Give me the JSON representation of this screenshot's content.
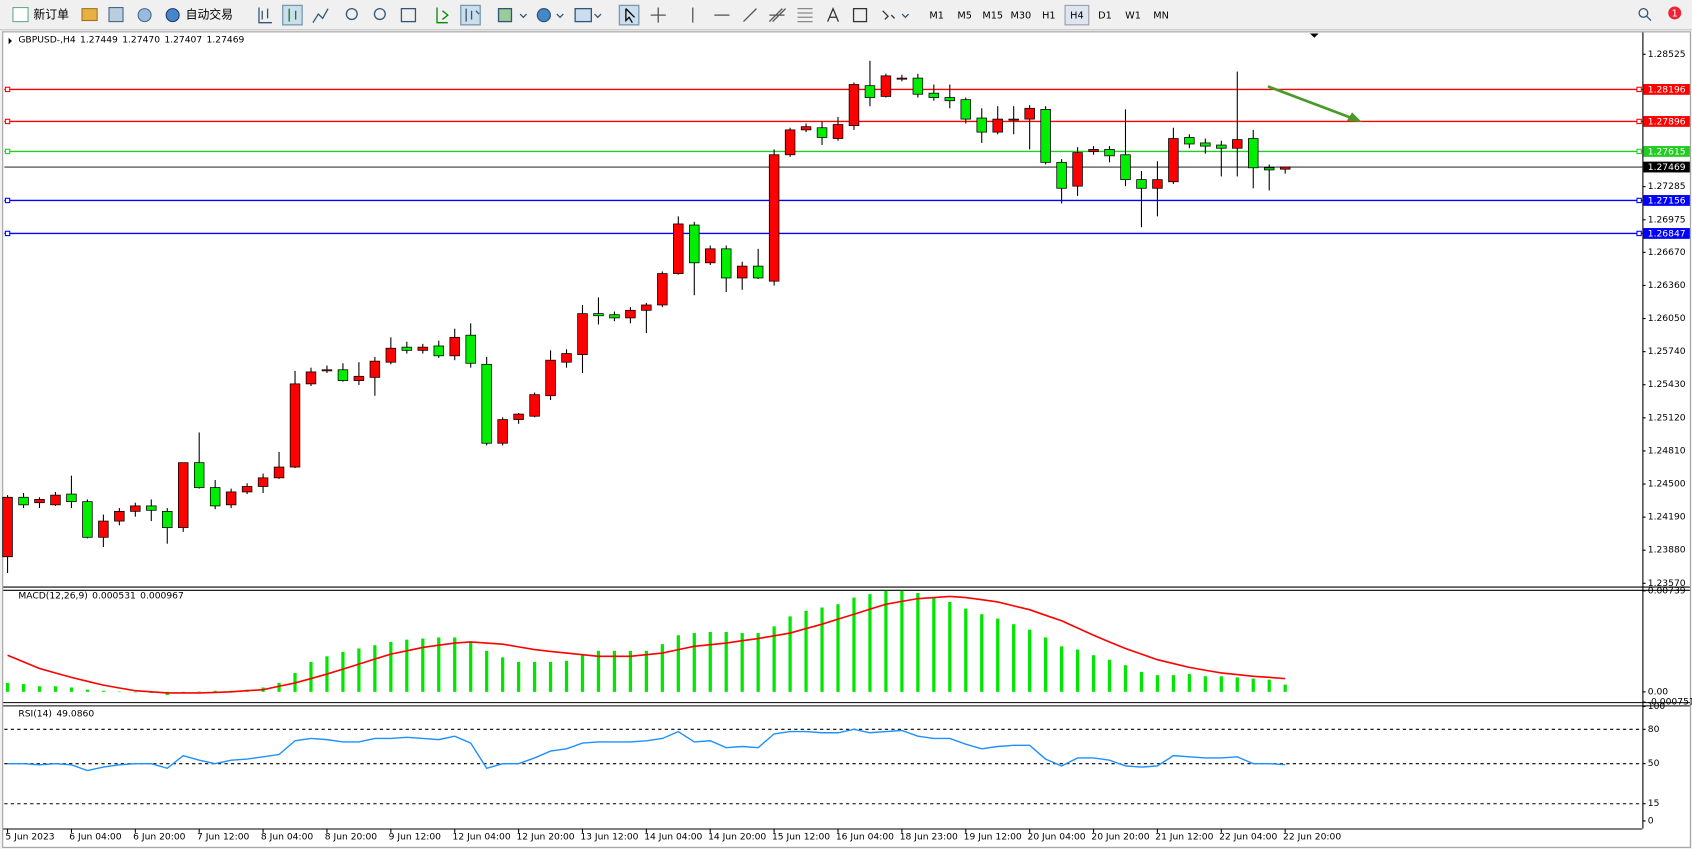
{
  "toolbar": {
    "new_order": "新订单",
    "auto_trading": "自动交易",
    "timeframes": [
      "M1",
      "M5",
      "M15",
      "M30",
      "H1",
      "H4",
      "D1",
      "W1",
      "MN"
    ],
    "active_timeframe": "H4",
    "notifications": 1
  },
  "chart_data": [
    {
      "type": "candlestick",
      "title": "GBPUSD-,H4",
      "header_labels": [
        "1.27449",
        "1.27470",
        "1.27407",
        "1.27469"
      ],
      "up_color": "#ff0000",
      "down_color": "#00ee00",
      "bid_color": "#000000",
      "categories": [
        "5 Jun 2023",
        null,
        null,
        null,
        "6 Jun 04:00",
        null,
        null,
        null,
        "6 Jun 20:00",
        null,
        null,
        null,
        "7 Jun 12:00",
        null,
        null,
        null,
        "8 Jun 04:00",
        null,
        null,
        null,
        "8 Jun 20:00",
        null,
        null,
        null,
        "9 Jun 12:00",
        null,
        null,
        null,
        "12 Jun 04:00",
        null,
        null,
        null,
        "12 Jun 20:00",
        null,
        null,
        null,
        "13 Jun 12:00",
        null,
        null,
        null,
        "14 Jun 04:00",
        null,
        null,
        null,
        "14 Jun 20:00",
        null,
        null,
        null,
        "15 Jun 12:00",
        null,
        null,
        null,
        "16 Jun 04:00",
        null,
        null,
        null,
        "18 Jun 23:00",
        null,
        null,
        null,
        "19 Jun 12:00",
        null,
        null,
        null,
        "20 Jun 04:00",
        null,
        null,
        null,
        "20 Jun 20:00",
        null,
        null,
        null,
        "21 Jun 12:00",
        null,
        null,
        null,
        "22 Jun 04:00",
        null,
        null,
        null,
        "22 Jun 20:00"
      ],
      "open": [
        1.23819,
        1.24376,
        1.24325,
        1.24305,
        1.24406,
        1.24335,
        1.24001,
        1.24153,
        1.24244,
        1.24295,
        1.24244,
        1.24092,
        1.247,
        1.24467,
        1.24305,
        1.24426,
        1.24477,
        1.24558,
        1.24659,
        1.25438,
        1.2556,
        1.2557,
        1.25469,
        1.25499,
        1.25641,
        1.25782,
        1.25752,
        1.25793,
        1.25701,
        1.25894,
        1.25621,
        1.24882,
        1.25104,
        1.25135,
        1.25327,
        1.25641,
        1.25712,
        1.26096,
        1.26086,
        1.26056,
        1.26127,
        1.26177,
        1.26471,
        1.26926,
        1.26572,
        1.26703,
        1.2643,
        1.26541,
        1.264,
        1.27584,
        1.27817,
        1.27837,
        1.27736,
        1.27857,
        1.28231,
        1.2813,
        1.28292,
        1.28302,
        1.28161,
        1.2812,
        1.281,
        1.27928,
        1.27796,
        1.27908,
        1.27918,
        1.28009,
        1.27513,
        1.2729,
        1.27614,
        1.27634,
        1.27584,
        1.27351,
        1.2727,
        1.27331,
        1.27746,
        1.27695,
        1.27675,
        1.27645,
        1.27736,
        1.27462,
        1.27449
      ],
      "high": [
        1.24396,
        1.24416,
        1.24376,
        1.24426,
        1.24578,
        1.24356,
        1.24214,
        1.24275,
        1.24325,
        1.24356,
        1.24275,
        1.247,
        1.24983,
        1.24538,
        1.24457,
        1.24507,
        1.24598,
        1.24801,
        1.2556,
        1.2559,
        1.2561,
        1.25631,
        1.25641,
        1.25691,
        1.25874,
        1.25833,
        1.25813,
        1.25843,
        1.25955,
        1.26005,
        1.25691,
        1.25125,
        1.25165,
        1.25357,
        1.25752,
        1.25762,
        1.26177,
        1.26248,
        1.26116,
        1.26157,
        1.26197,
        1.26491,
        1.27007,
        1.26956,
        1.26734,
        1.26734,
        1.26582,
        1.26703,
        1.27634,
        1.27837,
        1.27877,
        1.27898,
        1.27938,
        1.28262,
        1.28464,
        1.28343,
        1.28333,
        1.28343,
        1.28242,
        1.28242,
        1.2812,
        1.28019,
        1.28039,
        1.28039,
        1.28049,
        1.28039,
        1.27543,
        1.27655,
        1.27665,
        1.27665,
        1.28009,
        1.27432,
        1.27523,
        1.27837,
        1.27776,
        1.27736,
        1.27715,
        1.28363,
        1.27817,
        1.27493,
        1.2747
      ],
      "low": [
        1.23667,
        1.24275,
        1.24275,
        1.24295,
        1.24275,
        1.23991,
        1.2391,
        1.24113,
        1.24194,
        1.24153,
        1.23941,
        1.24052,
        1.24457,
        1.24264,
        1.24275,
        1.24406,
        1.24416,
        1.24548,
        1.24649,
        1.25418,
        1.2554,
        1.25459,
        1.25428,
        1.25327,
        1.25621,
        1.25722,
        1.25722,
        1.25681,
        1.2566,
        1.2559,
        1.24862,
        1.24862,
        1.25064,
        1.25125,
        1.25287,
        1.2559,
        1.2554,
        1.25995,
        1.26025,
        1.26005,
        1.25914,
        1.26157,
        1.26461,
        1.26268,
        1.26552,
        1.26299,
        1.26319,
        1.2642,
        1.26359,
        1.27564,
        1.27796,
        1.27675,
        1.27715,
        1.27817,
        1.28039,
        1.2812,
        1.28272,
        1.2812,
        1.2809,
        1.28019,
        1.27877,
        1.27695,
        1.27776,
        1.27776,
        1.27634,
        1.27493,
        1.27128,
        1.27199,
        1.27584,
        1.27513,
        1.2729,
        1.26906,
        1.27007,
        1.27311,
        1.27645,
        1.27594,
        1.27381,
        1.27381,
        1.2727,
        1.2725,
        1.27407
      ],
      "close": [
        1.24376,
        1.24305,
        1.24356,
        1.24396,
        1.24335,
        1.24001,
        1.24153,
        1.24244,
        1.24295,
        1.24254,
        1.24092,
        1.247,
        1.24467,
        1.24295,
        1.24426,
        1.24477,
        1.24558,
        1.24659,
        1.25438,
        1.2555,
        1.2557,
        1.25469,
        1.25509,
        1.25651,
        1.25772,
        1.25752,
        1.25782,
        1.25701,
        1.25874,
        1.25631,
        1.24882,
        1.25104,
        1.25155,
        1.25337,
        1.2566,
        1.25722,
        1.26096,
        1.26076,
        1.26056,
        1.26127,
        1.26177,
        1.26471,
        1.26936,
        1.26572,
        1.26703,
        1.2643,
        1.26541,
        1.2643,
        1.27584,
        1.27817,
        1.27847,
        1.27746,
        1.27867,
        1.28242,
        1.2812,
        1.28323,
        1.28302,
        1.28151,
        1.2812,
        1.2809,
        1.27918,
        1.27796,
        1.27918,
        1.27918,
        1.28019,
        1.27513,
        1.2727,
        1.27604,
        1.27634,
        1.27574,
        1.27351,
        1.2727,
        1.27351,
        1.27736,
        1.27685,
        1.27665,
        1.27645,
        1.27726,
        1.27462,
        1.27442,
        1.27469
      ],
      "lines": [
        {
          "value": 1.28196,
          "color": "#ff0000"
        },
        {
          "value": 1.27896,
          "color": "#ff0000"
        },
        {
          "value": 1.27615,
          "color": "#22cc22"
        },
        {
          "value": 1.27156,
          "color": "#0000ff"
        },
        {
          "value": 1.26847,
          "color": "#0000ff"
        }
      ],
      "ylim": [
        1.2354,
        1.2873
      ],
      "yticks": [
        1.28525,
        1.27285,
        1.26975,
        {
          "value": 1.2667,
          "label": "1.26670"
        },
        {
          "value": 1.2636,
          "label": "1.26360"
        },
        {
          "value": 1.2605,
          "label": "1.26050"
        },
        {
          "value": 1.2574,
          "label": "1.25740"
        },
        {
          "value": 1.2543,
          "label": "1.25430"
        },
        {
          "value": 1.2512,
          "label": "1.25120"
        },
        {
          "value": 1.2481,
          "label": "1.24810"
        },
        {
          "value": 1.245,
          "label": "1.24500"
        },
        {
          "value": 1.2419,
          "label": "1.24190"
        },
        {
          "value": 1.2388,
          "label": "1.23880"
        },
        {
          "value": 1.2357,
          "label": "1.23570"
        }
      ]
    },
    {
      "type": "macd",
      "title": "MACD(12,26,9)",
      "histogram": {
        "color": "#00e600",
        "values": [
          0.00065,
          0.00057,
          0.00041,
          0.00041,
          0.00032,
          0.00016,
          8e-05,
          2e-05,
          -4e-05,
          -8e-05,
          -0.00024,
          -8e-05,
          2e-05,
          8e-05,
          8e-05,
          0.00016,
          0.00032,
          0.00065,
          0.00138,
          0.00219,
          0.0026,
          0.00292,
          0.00317,
          0.00341,
          0.00365,
          0.00382,
          0.0039,
          0.00398,
          0.00398,
          0.00365,
          0.003,
          0.00252,
          0.00219,
          0.00219,
          0.00219,
          0.00227,
          0.00276,
          0.003,
          0.003,
          0.003,
          0.003,
          0.00349,
          0.00414,
          0.0043,
          0.00438,
          0.00438,
          0.0043,
          0.0043,
          0.00479,
          0.00552,
          0.00593,
          0.00617,
          0.00641,
          0.0069,
          0.00715,
          0.00739,
          0.00739,
          0.00723,
          0.0069,
          0.00658,
          0.00609,
          0.00568,
          0.00536,
          0.00495,
          0.00455,
          0.00398,
          0.00333,
          0.00309,
          0.00268,
          0.00235,
          0.00195,
          0.00146,
          0.00122,
          0.00122,
          0.0013,
          0.00114,
          0.00114,
          0.00106,
          0.00097,
          0.00089,
          0.000531
        ]
      },
      "signal": {
        "color": "#ff0000",
        "values": [
          0.00268,
          0.00219,
          0.00171,
          0.00138,
          0.00106,
          0.00077,
          0.00049,
          0.00028,
          8e-05,
          0,
          -8e-05,
          -8e-05,
          -8e-05,
          -4e-05,
          0,
          8e-05,
          0.00016,
          0.00041,
          0.00065,
          0.00097,
          0.0013,
          0.00166,
          0.00203,
          0.0024,
          0.00276,
          0.003,
          0.00325,
          0.00341,
          0.00357,
          0.00365,
          0.00357,
          0.00349,
          0.00329,
          0.00309,
          0.00296,
          0.00284,
          0.00272,
          0.0026,
          0.0026,
          0.0026,
          0.00272,
          0.00284,
          0.00309,
          0.00333,
          0.00345,
          0.00357,
          0.00374,
          0.0039,
          0.0041,
          0.0043,
          0.00463,
          0.00495,
          0.00532,
          0.00568,
          0.00605,
          0.00641,
          0.00662,
          0.00682,
          0.0069,
          0.00698,
          0.0069,
          0.00674,
          0.00658,
          0.00629,
          0.00601,
          0.0056,
          0.0052,
          0.00467,
          0.00414,
          0.00365,
          0.00317,
          0.00276,
          0.00235,
          0.00207,
          0.00179,
          0.00158,
          0.00138,
          0.00126,
          0.00114,
          0.00106,
          0.000967
        ]
      },
      "ylim": [
        -0.000751,
        0.00739
      ],
      "yticks": [
        0.00739,
        {
          "value": 0,
          "label": "0.00"
        },
        -0.000751
      ]
    },
    {
      "type": "rsi",
      "title": "RSI(14)",
      "header_label": "49.0860",
      "color": "#1e90ff",
      "grid": "dashed",
      "values": [
        50,
        50,
        49,
        50,
        49,
        44,
        47,
        49,
        50,
        50,
        46,
        57,
        53,
        50,
        53,
        54,
        56,
        58,
        70,
        72,
        71,
        69,
        69,
        72,
        72,
        73,
        72,
        71,
        74,
        68,
        46,
        50,
        50,
        55,
        61,
        63,
        68,
        69,
        69,
        69,
        70,
        72,
        78,
        69,
        70,
        64,
        65,
        64,
        76,
        78,
        78,
        77,
        77,
        80,
        77,
        78,
        79,
        74,
        72,
        72,
        67,
        63,
        65,
        66,
        66,
        54,
        48,
        55,
        55,
        53,
        48,
        47,
        48,
        57,
        56,
        55,
        55,
        56,
        50,
        50,
        49.086
      ],
      "ylim": [
        0,
        100
      ],
      "yticks": [
        100,
        80,
        50,
        15,
        0
      ]
    }
  ]
}
